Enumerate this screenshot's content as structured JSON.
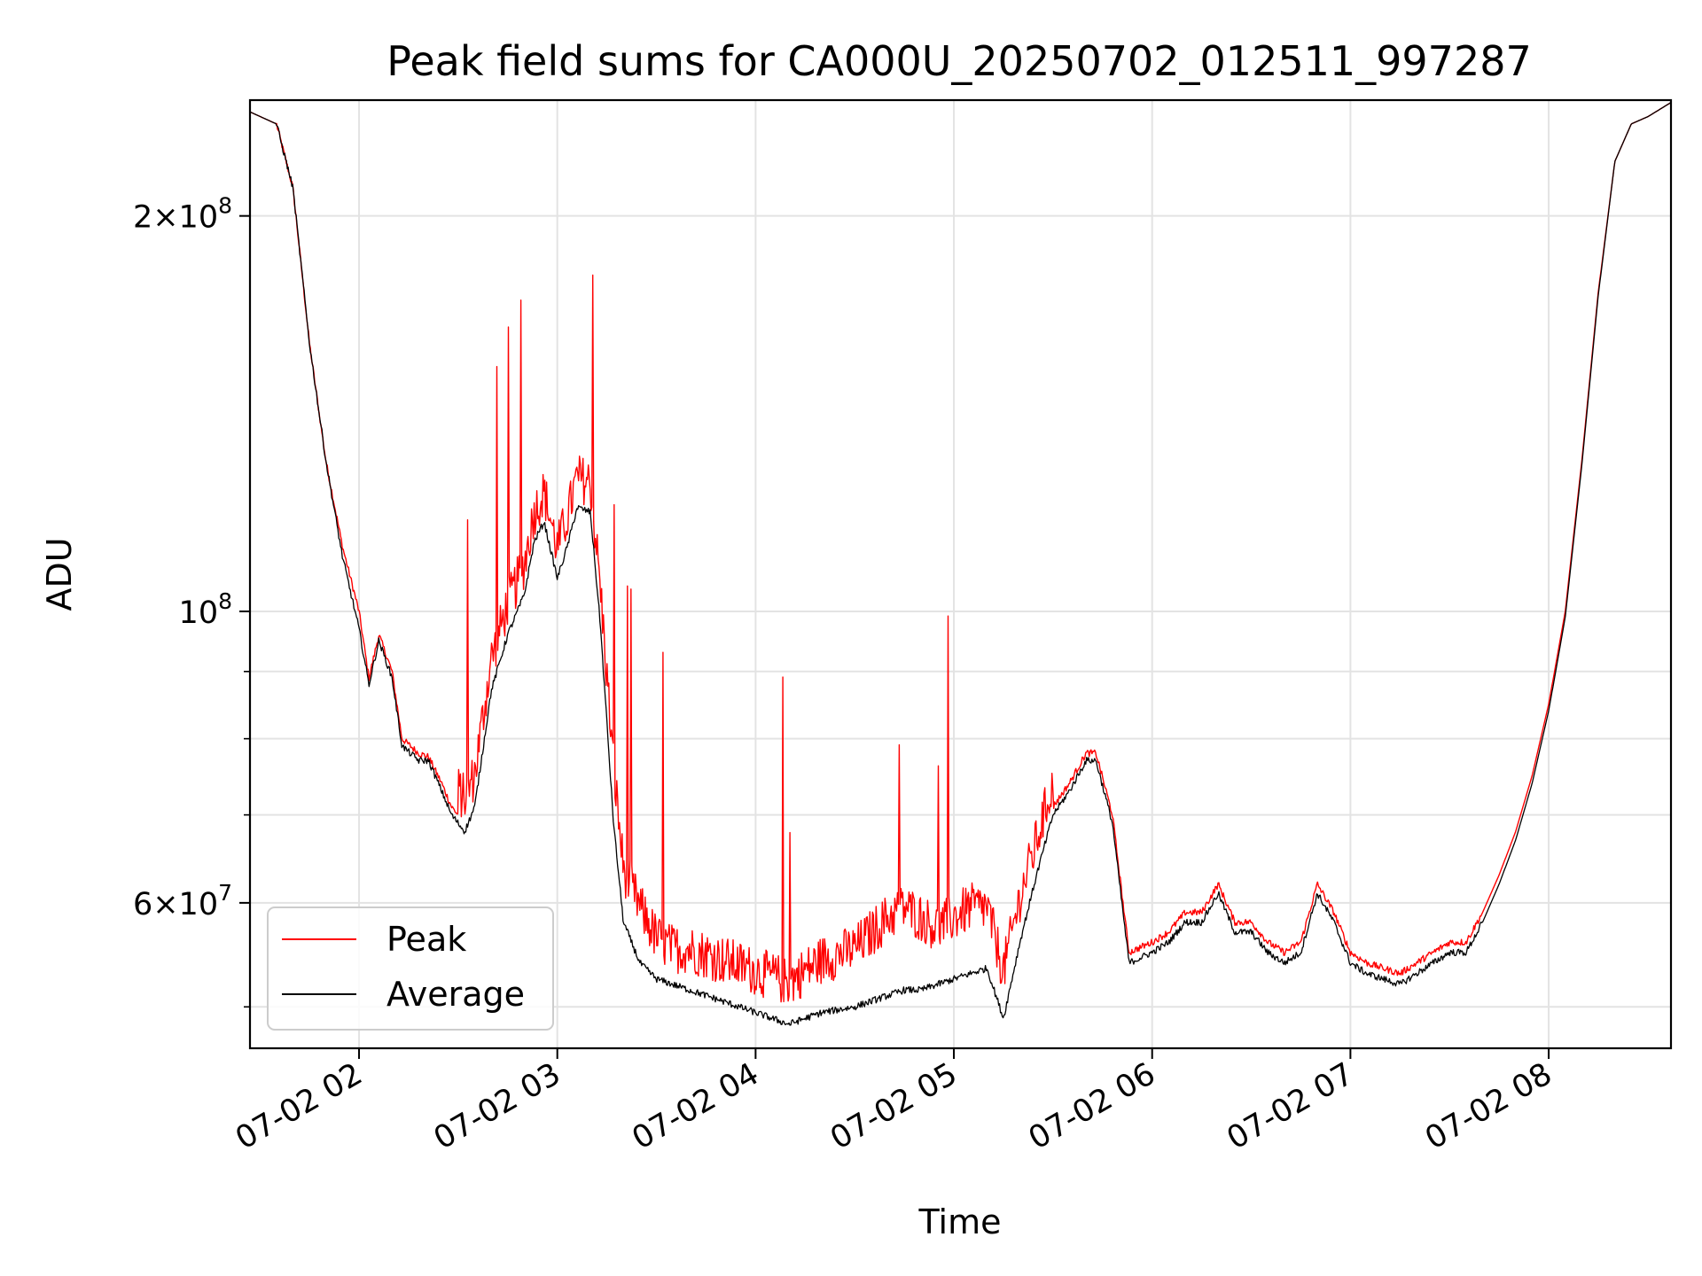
{
  "chart_data": {
    "type": "line",
    "title": "Peak field sums for CA000U_20250702_012511_997287",
    "xlabel": "Time",
    "ylabel": "ADU",
    "y_scale": "log",
    "x_range": [
      "07-02 01:27",
      "07-02 08:37"
    ],
    "ylim": [
      46500000,
      245000000
    ],
    "grid": true,
    "legend_position": "lower-left",
    "x_ticks": [
      "07-02 02",
      "07-02 03",
      "07-02 04",
      "07-02 05",
      "07-02 06",
      "07-02 07",
      "07-02 08"
    ],
    "x_tick_hours": [
      2,
      3,
      4,
      5,
      6,
      7,
      8
    ],
    "y_ticks_major": [
      {
        "value": 200000000,
        "mantissa": "2",
        "exponent": "8"
      },
      {
        "value": 100000000,
        "mantissa": "",
        "exponent": "8"
      },
      {
        "value": 60000000,
        "mantissa": "6",
        "exponent": "7"
      }
    ],
    "y_ticks_minor": [
      50000000,
      70000000,
      80000000,
      90000000
    ],
    "x_times": [
      "01:27",
      "01:35",
      "01:40",
      "01:45",
      "01:50",
      "01:55",
      "02:00",
      "02:03",
      "02:06",
      "02:10",
      "02:13",
      "02:18",
      "02:21",
      "02:25",
      "02:28",
      "02:32",
      "02:35",
      "02:40",
      "02:45",
      "02:50",
      "02:53",
      "02:56",
      "03:00",
      "03:03",
      "03:06",
      "03:10",
      "03:13",
      "03:17",
      "03:20",
      "03:25",
      "03:30",
      "03:35",
      "03:40",
      "03:45",
      "03:50",
      "03:55",
      "04:00",
      "04:05",
      "04:10",
      "04:15",
      "04:20",
      "04:30",
      "04:40",
      "04:45",
      "04:50",
      "04:55",
      "05:00",
      "05:05",
      "05:10",
      "05:15",
      "05:20",
      "05:25",
      "05:30",
      "05:35",
      "05:40",
      "05:43",
      "05:48",
      "05:53",
      "06:00",
      "06:05",
      "06:10",
      "06:15",
      "06:20",
      "06:25",
      "06:30",
      "06:35",
      "06:40",
      "06:45",
      "06:50",
      "06:55",
      "07:00",
      "07:05",
      "07:10",
      "07:15",
      "07:20",
      "07:25",
      "07:30",
      "07:35",
      "07:40",
      "07:45",
      "07:50",
      "07:55",
      "08:00",
      "08:05",
      "08:10",
      "08:15",
      "08:20",
      "08:25",
      "08:30",
      "08:37"
    ],
    "series": [
      {
        "name": "Peak",
        "color": "#ff0000",
        "values": [
          240000000,
          235000000,
          210000000,
          160000000,
          130000000,
          112000000,
          100000000,
          89000000,
          96000000,
          90000000,
          80000000,
          78000000,
          77500000,
          74000000,
          71000000,
          69000000,
          72000000,
          88000000,
          97000000,
          104000000,
          114000000,
          118000000,
          107000000,
          113000000,
          121000000,
          120000000,
          100000000,
          73000000,
          61000000,
          57000000,
          54000000,
          53000000,
          53000000,
          52500000,
          52000000,
          51500000,
          51000000,
          50500000,
          50000000,
          51000000,
          52000000,
          53000000,
          56000000,
          57000000,
          56000000,
          55000000,
          56000000,
          57000000,
          57000000,
          51000000,
          58000000,
          64000000,
          71000000,
          74000000,
          78000000,
          78000000,
          70000000,
          55000000,
          56000000,
          57000000,
          59000000,
          59000000,
          62000000,
          58000000,
          58000000,
          56000000,
          55000000,
          56000000,
          62000000,
          59000000,
          55000000,
          54000000,
          53500000,
          53000000,
          54000000,
          55000000,
          56000000,
          56000000,
          59000000,
          63000000,
          68000000,
          75000000,
          85000000,
          100000000,
          130000000,
          175000000,
          220000000,
          235000000,
          238000000,
          244000000
        ]
      },
      {
        "name": "Average",
        "color": "#000000",
        "values": [
          240000000,
          235000000,
          210000000,
          160000000,
          130000000,
          110000000,
          97000000,
          88000000,
          95000000,
          89000000,
          79000000,
          77000000,
          77000000,
          73000000,
          70000000,
          68000000,
          71000000,
          87000000,
          96000000,
          103000000,
          113000000,
          117000000,
          106000000,
          112000000,
          120000000,
          119000000,
          98000000,
          69000000,
          58000000,
          54000000,
          52500000,
          52000000,
          51500000,
          51000000,
          50500000,
          50000000,
          49500000,
          49000000,
          48500000,
          49000000,
          49500000,
          50000000,
          51000000,
          51500000,
          51500000,
          52000000,
          52500000,
          53000000,
          53500000,
          49000000,
          56000000,
          63000000,
          70000000,
          73000000,
          77000000,
          77000000,
          69000000,
          54000000,
          55000000,
          56000000,
          58000000,
          58000000,
          61000000,
          57000000,
          57000000,
          55000000,
          54000000,
          55000000,
          61000000,
          58000000,
          54000000,
          53000000,
          52500000,
          52000000,
          53000000,
          54000000,
          55000000,
          55000000,
          58000000,
          62000000,
          67000000,
          74000000,
          84000000,
          99000000,
          129000000,
          174000000,
          220000000,
          235000000,
          238000000,
          244000000
        ]
      }
    ],
    "noise_note": ""
  }
}
